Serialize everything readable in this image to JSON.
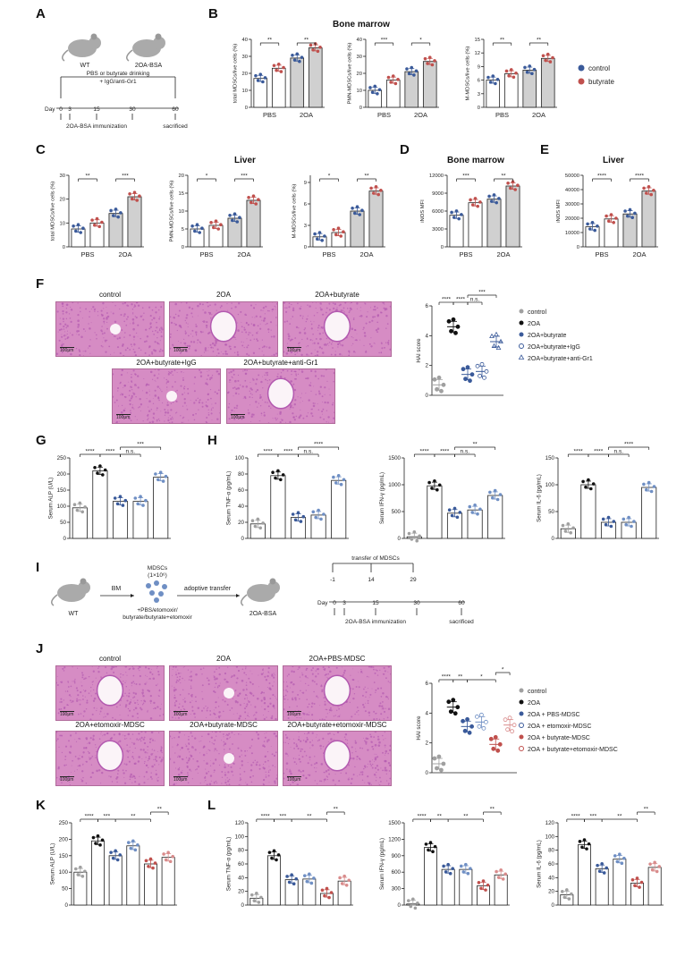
{
  "colors": {
    "control": "#3a5a9a",
    "butyrate": "#c0504d",
    "black": "#111111",
    "gray": "#a0a0a0",
    "lightblue": "#6f8fc4",
    "lightred": "#d98c8c",
    "he_pink": "#d68cc4",
    "he_purple": "#b35ab0"
  },
  "panel_labels": {
    "A": "A",
    "B": "B",
    "C": "C",
    "D": "D",
    "E": "E",
    "F": "F",
    "G": "G",
    "H": "H",
    "I": "I",
    "J": "J",
    "K": "K",
    "L": "L"
  },
  "panelA": {
    "mouse1": "WT",
    "mouse2": "2OA-BSA",
    "treatment_line1": "PBS or butyrate drinking",
    "treatment_line2": "+ IgG/anti-Gr1",
    "day_label": "Day",
    "days": [
      "0",
      "3",
      "15",
      "30",
      "60"
    ],
    "immunization": "2OA-BSA immunization",
    "end": "sacrificed"
  },
  "panelI": {
    "mouse1": "WT",
    "mouse2": "2OA-BSA",
    "bm": "BM",
    "mdsc_line1": "MDSCs",
    "mdsc_line2": "(1×10⁶)",
    "treat_line1": "+PBS/etomoxir/",
    "treat_line2": "butyrate/butyrate+etomoxir",
    "adoptive": "adoptive transfer",
    "transfer": "transfer of MDSCs",
    "transfer_days": [
      "-1",
      "14",
      "29"
    ],
    "day_label": "Day",
    "days": [
      "0",
      "3",
      "15",
      "30",
      "60"
    ],
    "immunization": "2OA-BSA immunization",
    "end": "sacrificed"
  },
  "legend2": {
    "control": "control",
    "butyrate": "butyrate"
  },
  "legendF": [
    "control",
    "2OA",
    "2OA+butyrate",
    "2OA+butyrate+IgG",
    "2OA+butyrate+anti-Gr1"
  ],
  "legendJ": [
    "control",
    "2OA",
    "2OA + PBS-MDSC",
    "2OA + etomoxir-MDSC",
    "2OA + butyrate-MDSC",
    "2OA + butyrate+etomoxir-MDSC"
  ],
  "histoF": [
    "control",
    "2OA",
    "2OA+butyrate",
    "2OA+butyrate+IgG",
    "2OA+butyrate+anti-Gr1"
  ],
  "histoJ": [
    "control",
    "2OA",
    "2OA+PBS-MDSC",
    "2OA+etomoxir-MDSC",
    "2OA+butyrate-MDSC",
    "2OA+butyrate+etomoxir-MDSC"
  ],
  "scale_bar": "100μm",
  "chart_data": [
    {
      "id": "B1",
      "panel": "B",
      "section_title": "Bone marrow",
      "type": "bar",
      "ylabel": "total MDSCs/live cells (%)",
      "ylim": [
        0,
        40
      ],
      "ticks": [
        0,
        10,
        20,
        30,
        40
      ],
      "groups": [
        "PBS",
        "2OA"
      ],
      "bars": [
        {
          "v": 17,
          "s": "control"
        },
        {
          "v": 23,
          "s": "butyrate"
        },
        {
          "v": 29,
          "s": "control"
        },
        {
          "v": 35,
          "s": "butyrate"
        }
      ],
      "sig": [
        {
          "a": 0,
          "b": 1,
          "t": "**"
        },
        {
          "a": 2,
          "b": 3,
          "t": "**"
        }
      ]
    },
    {
      "id": "B2",
      "panel": "B",
      "type": "bar",
      "ylabel": "PMN-MDSCs/live cells (%)",
      "ylim": [
        0,
        40
      ],
      "ticks": [
        0,
        10,
        20,
        30,
        40
      ],
      "groups": [
        "PBS",
        "2OA"
      ],
      "bars": [
        {
          "v": 10,
          "s": "control"
        },
        {
          "v": 16,
          "s": "butyrate"
        },
        {
          "v": 21,
          "s": "control"
        },
        {
          "v": 27,
          "s": "butyrate"
        }
      ],
      "sig": [
        {
          "a": 0,
          "b": 1,
          "t": "***"
        },
        {
          "a": 2,
          "b": 3,
          "t": "*"
        }
      ]
    },
    {
      "id": "B3",
      "panel": "B",
      "type": "bar",
      "ylabel": "M-MDSCs/live cells (%)",
      "ylim": [
        0,
        15
      ],
      "ticks": [
        0,
        3,
        6,
        9,
        12,
        15
      ],
      "groups": [
        "PBS",
        "2OA"
      ],
      "bars": [
        {
          "v": 6,
          "s": "control"
        },
        {
          "v": 7.4,
          "s": "butyrate"
        },
        {
          "v": 8.2,
          "s": "control"
        },
        {
          "v": 10.8,
          "s": "butyrate"
        }
      ],
      "sig": [
        {
          "a": 0,
          "b": 1,
          "t": "**"
        },
        {
          "a": 2,
          "b": 3,
          "t": "**"
        }
      ]
    },
    {
      "id": "C1",
      "panel": "C",
      "type": "bar",
      "ylabel": "total MDSCs/live cells (%)",
      "ylim": [
        0,
        30
      ],
      "ticks": [
        0,
        10,
        20,
        30
      ],
      "groups": [
        "PBS",
        "2OA"
      ],
      "bars": [
        {
          "v": 7.5,
          "s": "control"
        },
        {
          "v": 10,
          "s": "butyrate"
        },
        {
          "v": 14,
          "s": "control"
        },
        {
          "v": 21,
          "s": "butyrate"
        }
      ],
      "sig": [
        {
          "a": 0,
          "b": 1,
          "t": "**"
        },
        {
          "a": 2,
          "b": 3,
          "t": "***"
        }
      ]
    },
    {
      "id": "C2",
      "panel": "C",
      "section_title": "Liver",
      "type": "bar",
      "ylabel": "PMN-MDSCs/live cells (%)",
      "ylim": [
        0,
        20
      ],
      "ticks": [
        0,
        5,
        10,
        15,
        20
      ],
      "groups": [
        "PBS",
        "2OA"
      ],
      "bars": [
        {
          "v": 5,
          "s": "control"
        },
        {
          "v": 6,
          "s": "butyrate"
        },
        {
          "v": 8,
          "s": "control"
        },
        {
          "v": 13,
          "s": "butyrate"
        }
      ],
      "sig": [
        {
          "a": 0,
          "b": 1,
          "t": "*"
        },
        {
          "a": 2,
          "b": 3,
          "t": "***"
        }
      ]
    },
    {
      "id": "C3",
      "panel": "C",
      "type": "bar",
      "ylabel": "M-MDSCs/live cells (%)",
      "ylim": [
        0,
        10
      ],
      "ticks": [
        0,
        3,
        6,
        9
      ],
      "groups": [
        "PBS",
        "2OA"
      ],
      "bars": [
        {
          "v": 1.4,
          "s": "control"
        },
        {
          "v": 2,
          "s": "butyrate"
        },
        {
          "v": 5,
          "s": "control"
        },
        {
          "v": 7.8,
          "s": "butyrate"
        }
      ],
      "sig": [
        {
          "a": 0,
          "b": 1,
          "t": "*"
        },
        {
          "a": 2,
          "b": 3,
          "t": "**"
        }
      ]
    },
    {
      "id": "D",
      "panel": "D",
      "section_title": "Bone marrow",
      "type": "bar",
      "ylabel": "iNOS MFI",
      "ylim": [
        0,
        12000
      ],
      "ticks": [
        0,
        3000,
        6000,
        9000,
        12000
      ],
      "groups": [
        "PBS",
        "2OA"
      ],
      "bars": [
        {
          "v": 5300,
          "s": "control"
        },
        {
          "v": 7400,
          "s": "butyrate"
        },
        {
          "v": 8000,
          "s": "control"
        },
        {
          "v": 10200,
          "s": "butyrate"
        }
      ],
      "sig": [
        {
          "a": 0,
          "b": 1,
          "t": "***"
        },
        {
          "a": 2,
          "b": 3,
          "t": "**"
        }
      ]
    },
    {
      "id": "E",
      "panel": "E",
      "section_title": "Liver",
      "type": "bar",
      "ylabel": "iNOS MFI",
      "ylim": [
        0,
        50000
      ],
      "ticks": [
        0,
        10000,
        20000,
        30000,
        40000,
        50000
      ],
      "groups": [
        "PBS",
        "2OA"
      ],
      "bars": [
        {
          "v": 14000,
          "s": "control"
        },
        {
          "v": 19500,
          "s": "butyrate"
        },
        {
          "v": 23000,
          "s": "control"
        },
        {
          "v": 39000,
          "s": "butyrate"
        }
      ],
      "sig": [
        {
          "a": 0,
          "b": 1,
          "t": "****"
        },
        {
          "a": 2,
          "b": 3,
          "t": "****"
        }
      ]
    },
    {
      "id": "F",
      "panel": "F",
      "type": "scatter",
      "ylabel": "HAI score",
      "ylim": [
        0,
        6
      ],
      "ticks": [
        0,
        2,
        4,
        6
      ],
      "groups": [
        {
          "v": 0.7,
          "c": "gray",
          "m": "c"
        },
        {
          "v": 4.6,
          "c": "black",
          "m": "c"
        },
        {
          "v": 1.4,
          "c": "control",
          "m": "c"
        },
        {
          "v": 1.6,
          "c": "control",
          "m": "o"
        },
        {
          "v": 3.6,
          "c": "control",
          "m": "t"
        }
      ],
      "sig": [
        {
          "a": 0,
          "b": 1,
          "t": "****"
        },
        {
          "a": 1,
          "b": 2,
          "t": "****"
        },
        {
          "a": 2,
          "b": 3,
          "t": "n.s."
        },
        {
          "a": 2,
          "b": 4,
          "t": "***"
        }
      ]
    },
    {
      "id": "G",
      "panel": "G",
      "type": "bar",
      "ylabel": "Serum ALP (U/L)",
      "ylim": [
        0,
        250
      ],
      "ticks": [
        0,
        50,
        100,
        150,
        200,
        250
      ],
      "groups5": true,
      "bars": [
        {
          "v": 95,
          "c": "gray"
        },
        {
          "v": 210,
          "c": "black"
        },
        {
          "v": 115,
          "c": "control"
        },
        {
          "v": 115,
          "c": "lightblue"
        },
        {
          "v": 190,
          "c": "lightblue"
        }
      ],
      "sig": [
        {
          "a": 0,
          "b": 1,
          "t": "****"
        },
        {
          "a": 1,
          "b": 2,
          "t": "****"
        },
        {
          "a": 2,
          "b": 3,
          "t": "n.s."
        },
        {
          "a": 2,
          "b": 4,
          "t": "***"
        }
      ]
    },
    {
      "id": "H1",
      "panel": "H",
      "type": "bar",
      "ylabel": "Serum TNF-α (pg/mL)",
      "ylim": [
        0,
        100
      ],
      "ticks": [
        0,
        20,
        40,
        60,
        80,
        100
      ],
      "bars": [
        {
          "v": 18,
          "c": "gray"
        },
        {
          "v": 78,
          "c": "black"
        },
        {
          "v": 26,
          "c": "control"
        },
        {
          "v": 29,
          "c": "lightblue"
        },
        {
          "v": 72,
          "c": "lightblue"
        }
      ],
      "sig": [
        {
          "a": 0,
          "b": 1,
          "t": "****"
        },
        {
          "a": 1,
          "b": 2,
          "t": "****"
        },
        {
          "a": 2,
          "b": 3,
          "t": "n.s."
        },
        {
          "a": 2,
          "b": 4,
          "t": "****"
        }
      ]
    },
    {
      "id": "H2",
      "panel": "H",
      "type": "bar",
      "ylabel": "Serum IFN-γ (pg/mL)",
      "ylim": [
        0,
        1500
      ],
      "ticks": [
        0,
        500,
        1000,
        1500
      ],
      "bars": [
        {
          "v": 30,
          "c": "gray"
        },
        {
          "v": 980,
          "c": "black"
        },
        {
          "v": 470,
          "c": "control"
        },
        {
          "v": 530,
          "c": "lightblue"
        },
        {
          "v": 800,
          "c": "lightblue"
        }
      ],
      "sig": [
        {
          "a": 0,
          "b": 1,
          "t": "****"
        },
        {
          "a": 1,
          "b": 2,
          "t": "****"
        },
        {
          "a": 2,
          "b": 3,
          "t": "n.s."
        },
        {
          "a": 2,
          "b": 4,
          "t": "**"
        }
      ]
    },
    {
      "id": "H3",
      "panel": "H",
      "type": "bar",
      "ylabel": "Serum IL-6 (pg/mL)",
      "ylim": [
        0,
        150
      ],
      "ticks": [
        0,
        50,
        100,
        150
      ],
      "bars": [
        {
          "v": 18,
          "c": "gray"
        },
        {
          "v": 100,
          "c": "black"
        },
        {
          "v": 30,
          "c": "control"
        },
        {
          "v": 30,
          "c": "lightblue"
        },
        {
          "v": 95,
          "c": "lightblue"
        }
      ],
      "sig": [
        {
          "a": 0,
          "b": 1,
          "t": "****"
        },
        {
          "a": 1,
          "b": 2,
          "t": "****"
        },
        {
          "a": 2,
          "b": 3,
          "t": "n.s."
        },
        {
          "a": 2,
          "b": 4,
          "t": "****"
        }
      ]
    },
    {
      "id": "J",
      "panel": "J",
      "type": "scatter",
      "ylabel": "HAI score",
      "ylim": [
        0,
        6
      ],
      "ticks": [
        0,
        2,
        4,
        6
      ],
      "groups": [
        {
          "v": 0.6,
          "c": "gray",
          "m": "c"
        },
        {
          "v": 4.4,
          "c": "black",
          "m": "c"
        },
        {
          "v": 3.1,
          "c": "control",
          "m": "c"
        },
        {
          "v": 3.4,
          "c": "lightblue",
          "m": "o"
        },
        {
          "v": 1.9,
          "c": "butyrate",
          "m": "c"
        },
        {
          "v": 3.2,
          "c": "lightred",
          "m": "o"
        }
      ],
      "sig": [
        {
          "a": 0,
          "b": 1,
          "t": "****"
        },
        {
          "a": 1,
          "b": 2,
          "t": "**"
        },
        {
          "a": 2,
          "b": 4,
          "t": "*"
        },
        {
          "a": 4,
          "b": 5,
          "t": "*"
        }
      ]
    },
    {
      "id": "K",
      "panel": "K",
      "type": "bar",
      "ylabel": "Serum ALP (U/L)",
      "ylim": [
        0,
        250
      ],
      "ticks": [
        0,
        50,
        100,
        150,
        200,
        250
      ],
      "bars": [
        {
          "v": 100,
          "c": "gray"
        },
        {
          "v": 195,
          "c": "black"
        },
        {
          "v": 150,
          "c": "control"
        },
        {
          "v": 180,
          "c": "lightblue"
        },
        {
          "v": 125,
          "c": "butyrate"
        },
        {
          "v": 145,
          "c": "lightred"
        }
      ],
      "sig": [
        {
          "a": 0,
          "b": 1,
          "t": "****"
        },
        {
          "a": 1,
          "b": 2,
          "t": "***"
        },
        {
          "a": 2,
          "b": 4,
          "t": "**"
        },
        {
          "a": 4,
          "b": 5,
          "t": "**"
        }
      ]
    },
    {
      "id": "L1",
      "panel": "L",
      "type": "bar",
      "ylabel": "Serum TNF-α (pg/mL)",
      "ylim": [
        0,
        120
      ],
      "ticks": [
        0,
        20,
        40,
        60,
        80,
        100,
        120
      ],
      "bars": [
        {
          "v": 10,
          "c": "gray"
        },
        {
          "v": 72,
          "c": "black"
        },
        {
          "v": 37,
          "c": "control"
        },
        {
          "v": 38,
          "c": "lightblue"
        },
        {
          "v": 17,
          "c": "butyrate"
        },
        {
          "v": 35,
          "c": "lightred"
        }
      ],
      "sig": [
        {
          "a": 0,
          "b": 1,
          "t": "****"
        },
        {
          "a": 1,
          "b": 2,
          "t": "***"
        },
        {
          "a": 2,
          "b": 4,
          "t": "**"
        },
        {
          "a": 4,
          "b": 5,
          "t": "**"
        }
      ]
    },
    {
      "id": "L2",
      "panel": "L",
      "type": "bar",
      "ylabel": "Serum IFN-γ (pg/mL)",
      "ylim": [
        0,
        1500
      ],
      "ticks": [
        0,
        300,
        600,
        900,
        1200,
        1500
      ],
      "bars": [
        {
          "v": 20,
          "c": "gray"
        },
        {
          "v": 1050,
          "c": "black"
        },
        {
          "v": 650,
          "c": "control"
        },
        {
          "v": 650,
          "c": "lightblue"
        },
        {
          "v": 350,
          "c": "butyrate"
        },
        {
          "v": 550,
          "c": "lightred"
        }
      ],
      "sig": [
        {
          "a": 0,
          "b": 1,
          "t": "****"
        },
        {
          "a": 1,
          "b": 2,
          "t": "**"
        },
        {
          "a": 2,
          "b": 4,
          "t": "**"
        },
        {
          "a": 4,
          "b": 5,
          "t": "**"
        }
      ]
    },
    {
      "id": "L3",
      "panel": "L",
      "type": "bar",
      "ylabel": "Serum IL-6 (pg/mL)",
      "ylim": [
        0,
        120
      ],
      "ticks": [
        0,
        20,
        40,
        60,
        80,
        100,
        120
      ],
      "bars": [
        {
          "v": 15,
          "c": "gray"
        },
        {
          "v": 88,
          "c": "black"
        },
        {
          "v": 53,
          "c": "control"
        },
        {
          "v": 67,
          "c": "lightblue"
        },
        {
          "v": 32,
          "c": "butyrate"
        },
        {
          "v": 55,
          "c": "lightred"
        }
      ],
      "sig": [
        {
          "a": 0,
          "b": 1,
          "t": "****"
        },
        {
          "a": 1,
          "b": 2,
          "t": "***"
        },
        {
          "a": 2,
          "b": 4,
          "t": "**"
        },
        {
          "a": 4,
          "b": 5,
          "t": "**"
        }
      ]
    }
  ]
}
